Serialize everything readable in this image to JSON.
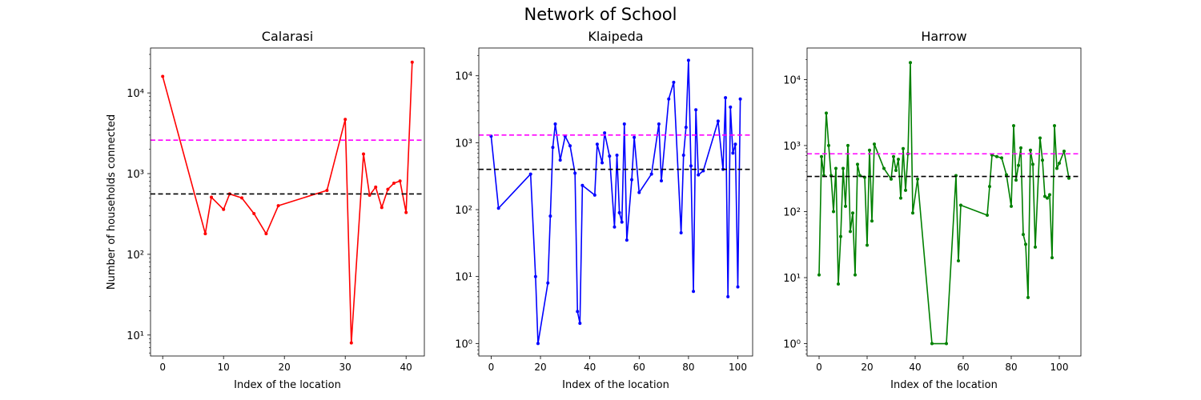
{
  "figure": {
    "title": "Network of School"
  },
  "chart_data": [
    {
      "type": "line",
      "title": "Calarasi",
      "xlabel": "Index of the location",
      "ylabel": "Number of households connected",
      "yscale": "log",
      "xlim": [
        -2,
        43
      ],
      "ylim": [
        5.5,
        36000
      ],
      "xticks": [
        0,
        10,
        20,
        30,
        40
      ],
      "yticks": [
        10,
        100,
        1000,
        10000
      ],
      "ytick_labels": [
        "10¹",
        "10²",
        "10³",
        "10⁴"
      ],
      "grid": false,
      "series": [
        {
          "color": "#ff0000",
          "x": [
            0,
            7,
            8,
            10,
            11,
            13,
            15,
            17,
            19,
            27,
            30,
            31,
            33,
            34,
            35,
            36,
            37,
            38,
            39,
            40,
            41
          ],
          "y": [
            16000,
            180,
            510,
            360,
            560,
            500,
            320,
            180,
            400,
            620,
            4700,
            8,
            1750,
            540,
            680,
            380,
            640,
            760,
            810,
            330,
            24000
          ]
        }
      ],
      "hlines": [
        {
          "y": 2600,
          "color": "#ff00ff",
          "style": "dashed"
        },
        {
          "y": 560,
          "color": "#000000",
          "style": "dashed"
        }
      ]
    },
    {
      "type": "line",
      "title": "Klaipeda",
      "xlabel": "Index of the location",
      "yscale": "log",
      "xlim": [
        -5,
        106
      ],
      "ylim": [
        0.65,
        26000
      ],
      "xticks": [
        0,
        20,
        40,
        60,
        80,
        100
      ],
      "yticks": [
        1,
        10,
        100,
        1000,
        10000
      ],
      "ytick_labels": [
        "10⁰",
        "10¹",
        "10²",
        "10³",
        "10⁴"
      ],
      "grid": false,
      "series": [
        {
          "color": "#0000ff",
          "x": [
            0,
            3,
            16,
            18,
            19,
            23,
            24,
            25,
            26,
            28,
            30,
            32,
            34,
            35,
            36,
            37,
            42,
            43,
            45,
            46,
            48,
            50,
            51,
            52,
            53,
            54,
            55,
            57,
            58,
            60,
            65,
            68,
            69,
            72,
            74,
            77,
            78,
            79,
            80,
            81,
            82,
            83,
            84,
            86,
            92,
            94,
            95,
            96,
            97,
            98,
            99,
            100,
            101
          ],
          "y": [
            1250,
            105,
            340,
            10,
            1,
            8,
            80,
            850,
            1900,
            550,
            1250,
            900,
            350,
            3,
            2,
            230,
            165,
            950,
            500,
            1400,
            630,
            55,
            650,
            90,
            65,
            1900,
            35,
            280,
            1200,
            180,
            340,
            1900,
            270,
            4500,
            8000,
            45,
            650,
            1700,
            17000,
            450,
            6,
            3100,
            330,
            380,
            2100,
            400,
            4700,
            5,
            3400,
            700,
            950,
            7,
            4500
          ]
        }
      ],
      "hlines": [
        {
          "y": 1300,
          "color": "#ff00ff",
          "style": "dashed"
        },
        {
          "y": 400,
          "color": "#000000",
          "style": "dashed"
        }
      ]
    },
    {
      "type": "line",
      "title": "Harrow",
      "xlabel": "Index of the location",
      "yscale": "log",
      "xlim": [
        -5,
        109
      ],
      "ylim": [
        0.65,
        30000
      ],
      "xticks": [
        0,
        20,
        40,
        60,
        80,
        100
      ],
      "yticks": [
        1,
        10,
        100,
        1000,
        10000
      ],
      "ytick_labels": [
        "10⁰",
        "10¹",
        "10²",
        "10³",
        "10⁴"
      ],
      "grid": false,
      "series": [
        {
          "color": "#008000",
          "x": [
            0,
            1,
            2,
            3,
            4,
            5,
            6,
            7,
            8,
            9,
            10,
            11,
            12,
            13,
            14,
            15,
            16,
            17,
            19,
            20,
            21,
            22,
            23,
            27,
            30,
            31,
            32,
            33,
            34,
            35,
            36,
            37,
            38,
            39,
            41,
            47,
            53,
            57,
            58,
            59,
            70,
            71,
            72,
            74,
            76,
            78,
            80,
            81,
            82,
            83,
            84,
            85,
            86,
            87,
            88,
            89,
            90,
            92,
            93,
            94,
            95,
            96,
            97,
            98,
            99,
            100,
            102,
            104
          ],
          "y": [
            11,
            680,
            350,
            3100,
            1000,
            350,
            100,
            450,
            8,
            42,
            450,
            120,
            1000,
            50,
            95,
            11,
            520,
            350,
            330,
            31,
            850,
            72,
            1050,
            450,
            310,
            680,
            420,
            620,
            160,
            900,
            210,
            750,
            18000,
            95,
            310,
            1,
            1,
            350,
            18,
            125,
            88,
            240,
            720,
            680,
            650,
            360,
            120,
            2000,
            300,
            500,
            920,
            45,
            32,
            5,
            850,
            520,
            29,
            1300,
            600,
            170,
            160,
            180,
            20,
            2000,
            450,
            540,
            820,
            320
          ]
        }
      ],
      "hlines": [
        {
          "y": 750,
          "color": "#ff00ff",
          "style": "dashed"
        },
        {
          "y": 340,
          "color": "#000000",
          "style": "dashed"
        }
      ]
    }
  ]
}
